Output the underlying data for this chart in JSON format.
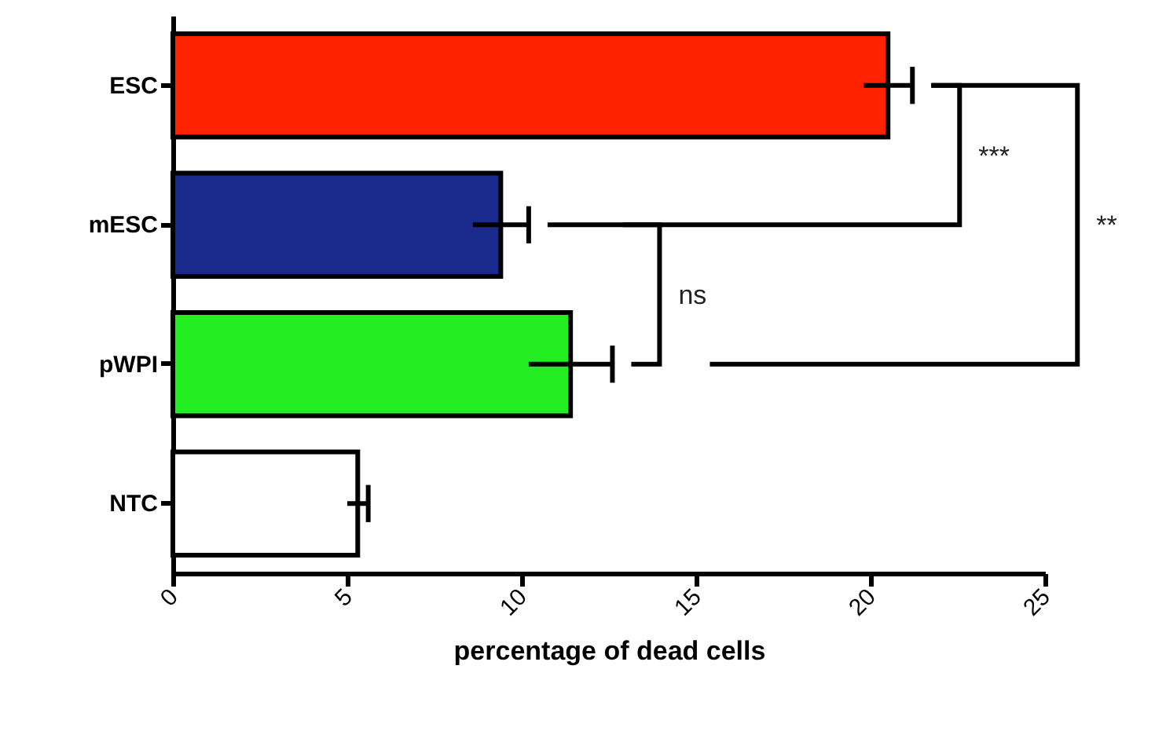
{
  "chart_data": {
    "type": "bar",
    "orientation": "horizontal",
    "xlabel": "percentage of dead cells",
    "categories": [
      "ESC",
      "mESC",
      "pWPI",
      "NTC"
    ],
    "values": [
      20.5,
      9.4,
      11.4,
      5.3
    ],
    "errors": [
      0.7,
      0.8,
      1.2,
      0.3
    ],
    "colors": [
      "#ff2200",
      "#1a2a8c",
      "#22ee22",
      "#ffffff"
    ],
    "xlim": [
      0,
      25
    ],
    "xticks": [
      0,
      5,
      10,
      15,
      20,
      25
    ],
    "grid": false,
    "annotations": [
      "***",
      "ns",
      "**"
    ]
  }
}
